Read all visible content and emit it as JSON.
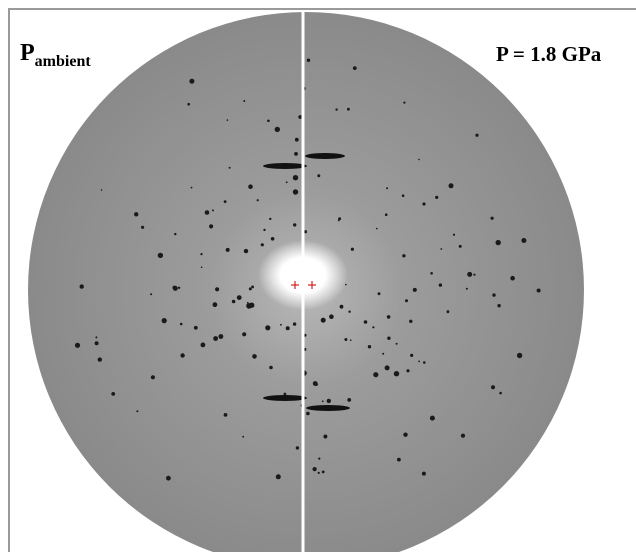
{
  "labels": {
    "left": {
      "main": "P",
      "subscript": "ambient"
    },
    "right": "P = 1.8 GPa"
  }
}
